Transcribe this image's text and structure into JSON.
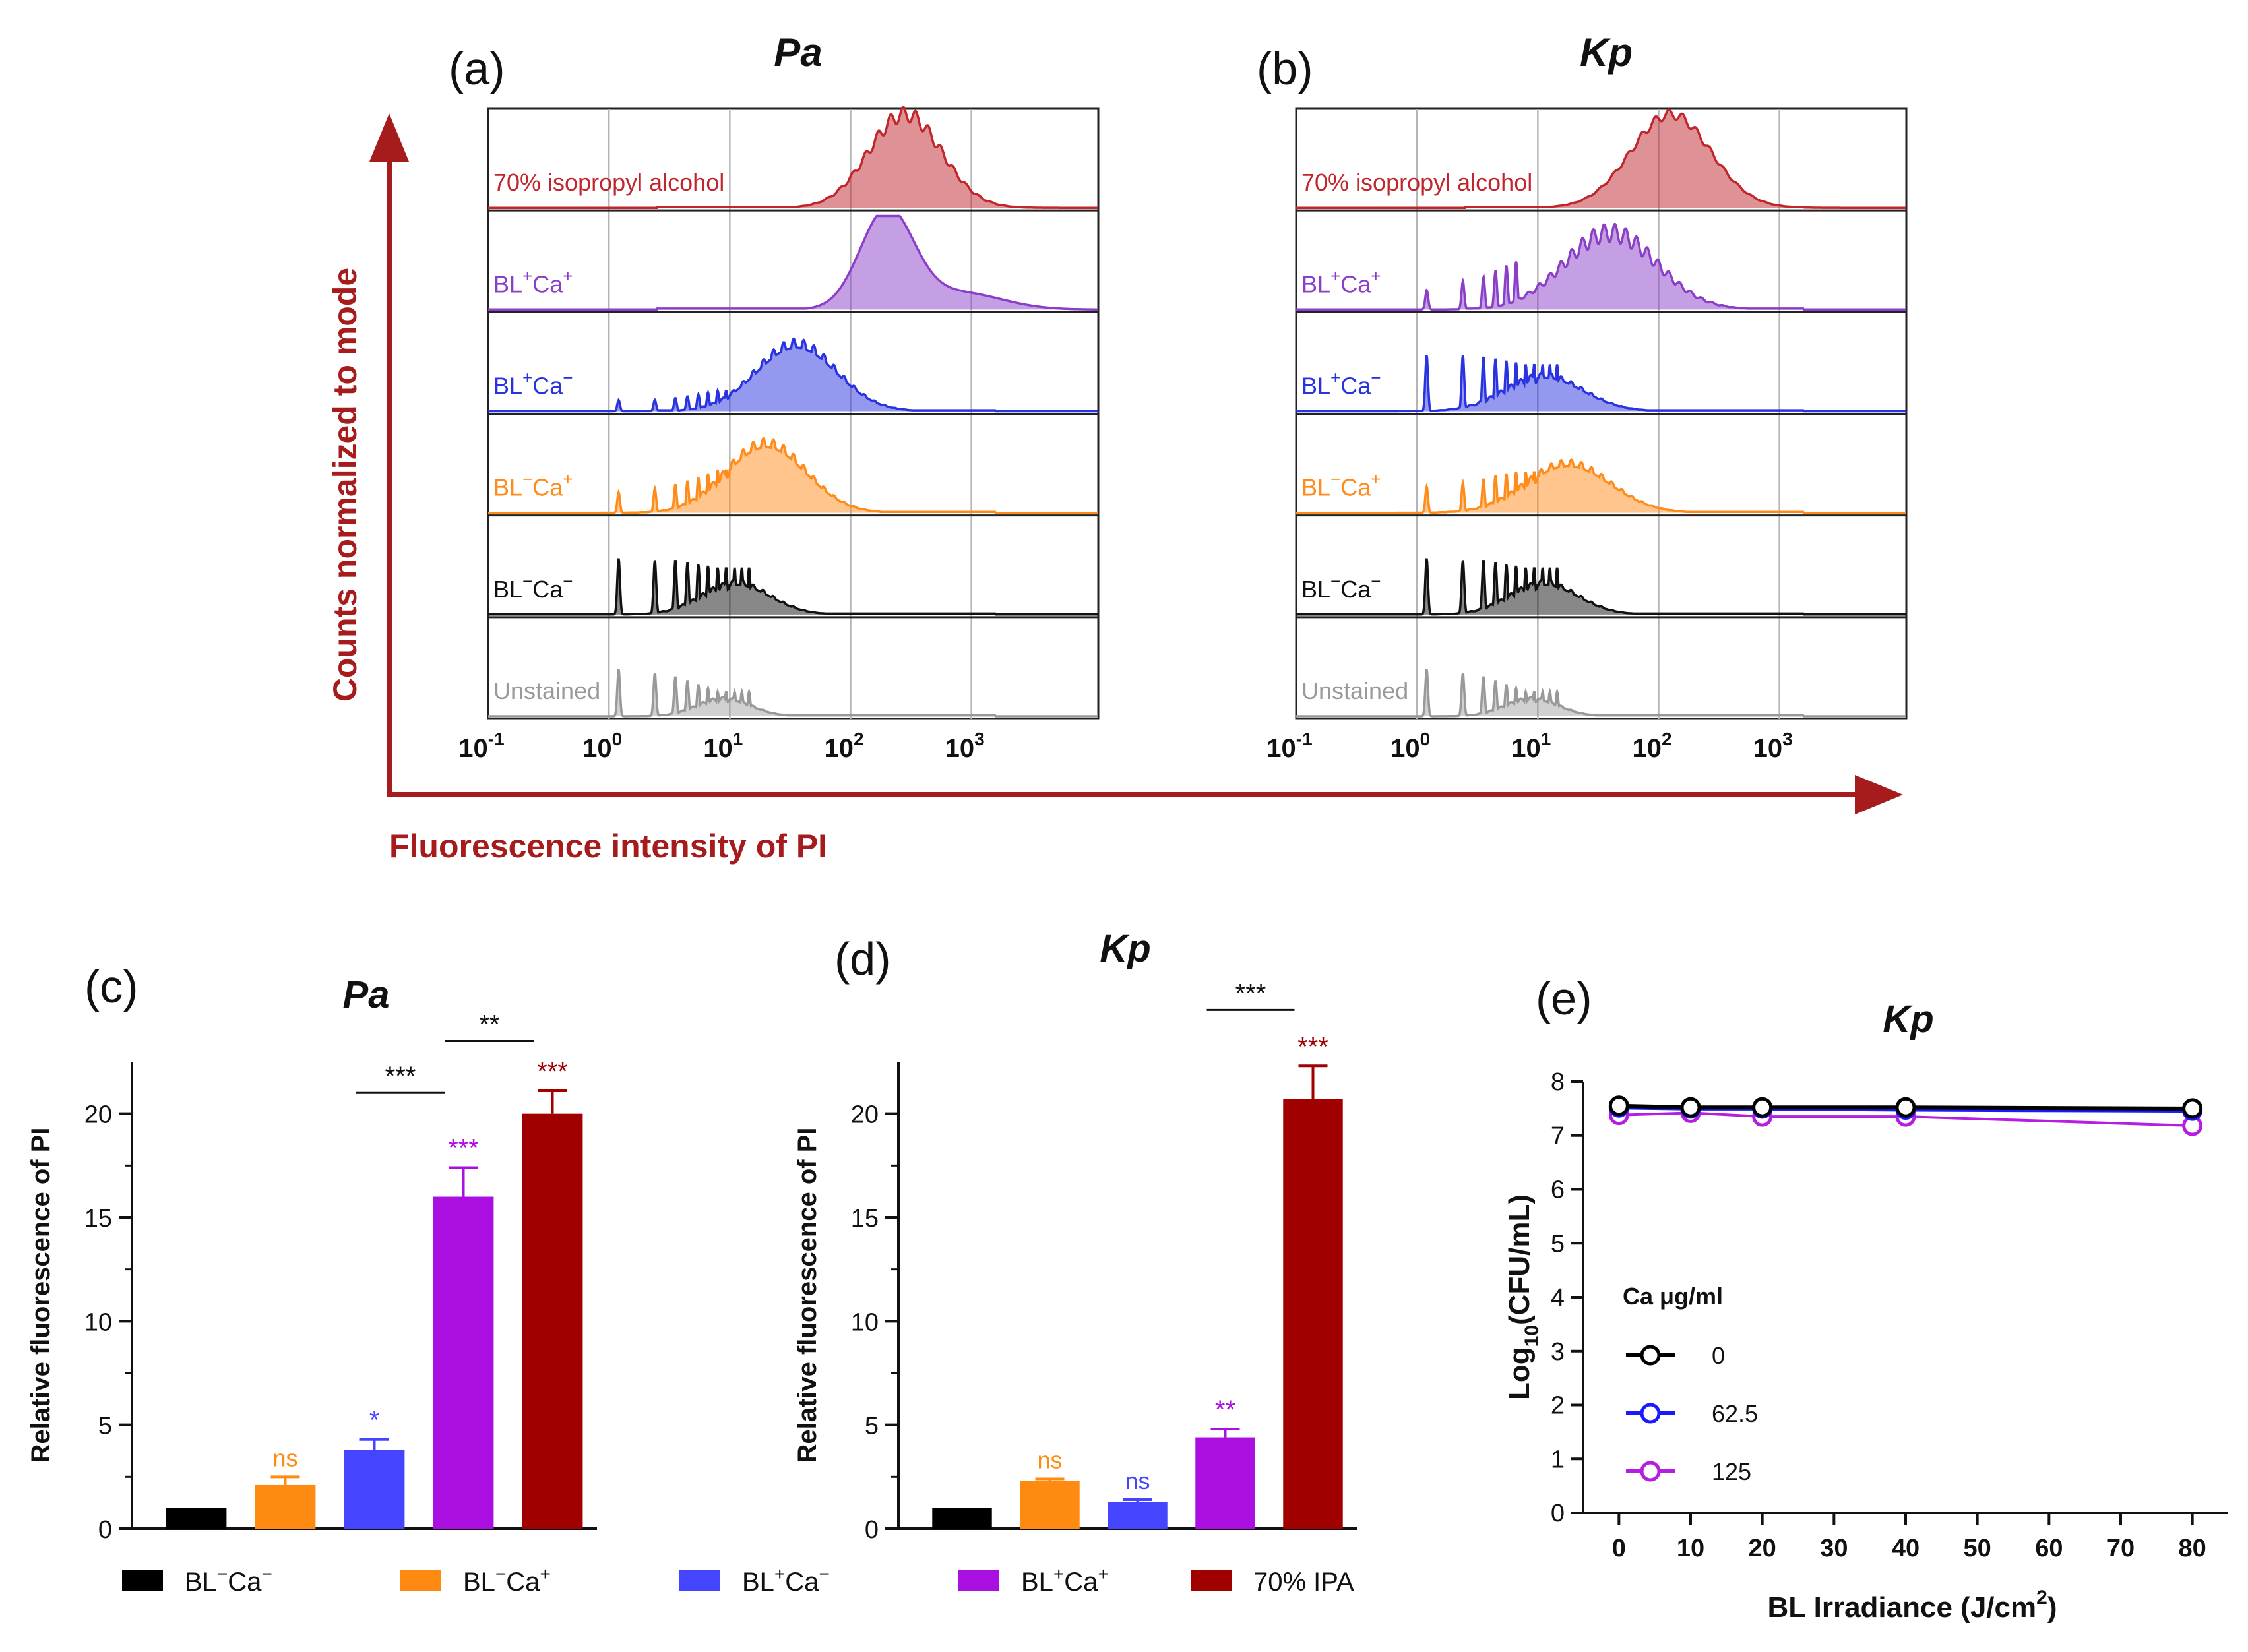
{
  "colors": {
    "arrow": "#a61c1c",
    "series": [
      "#c0262b",
      "#8b3fc9",
      "#2a33e0",
      "#ff8c1a",
      "#111111",
      "#999999"
    ],
    "bars": [
      "#000000",
      "#ff8a12",
      "#4545ff",
      "#a90fe0",
      "#a00000"
    ],
    "lines": [
      "#000000",
      "#1a1aff",
      "#b51ee0"
    ]
  },
  "flow": {
    "ylabel": "Counts normalized to mode",
    "xlabel": "Fluorescence intensity of PI",
    "ticks": [
      {
        "base": "10",
        "exp": "-1"
      },
      {
        "base": "10",
        "exp": "0"
      },
      {
        "base": "10",
        "exp": "1"
      },
      {
        "base": "10",
        "exp": "2"
      },
      {
        "base": "10",
        "exp": "3"
      }
    ],
    "panels": [
      {
        "letter": "(a)",
        "title": "Pa"
      },
      {
        "letter": "(b)",
        "title": "Kp"
      }
    ],
    "rows": [
      {
        "label": "70% isopropyl alcohol"
      },
      {
        "label_bl": "BL",
        "label_bl_sign": "+",
        "label_ca": "Ca",
        "label_ca_sign": "+"
      },
      {
        "label_bl": "BL",
        "label_bl_sign": "+",
        "label_ca": "Ca",
        "label_ca_sign": "−"
      },
      {
        "label_bl": "BL",
        "label_bl_sign": "−",
        "label_ca": "Ca",
        "label_ca_sign": "+"
      },
      {
        "label_bl": "BL",
        "label_bl_sign": "−",
        "label_ca": "Ca",
        "label_ca_sign": "−"
      },
      {
        "label": "Unstained"
      }
    ]
  },
  "chart_data": [
    {
      "type": "bar",
      "letter": "(c)",
      "title": "Pa",
      "ylabel": "Relative fluorescence of PI",
      "ylim": [
        0,
        22.5
      ],
      "yticks": [
        "0",
        "5",
        "10",
        "15",
        "20"
      ],
      "categories": [
        "BL−Ca−",
        "BL−Ca+",
        "BL+Ca−",
        "BL+Ca+",
        "70% IPA"
      ],
      "values": [
        1.0,
        2.1,
        3.8,
        16.0,
        20.0
      ],
      "errors": [
        0,
        0.4,
        0.5,
        1.4,
        1.1
      ],
      "stars": [
        "",
        "ns",
        "*",
        "***",
        "***"
      ],
      "comparisons": [
        {
          "from": 2,
          "to": 3,
          "label": "***",
          "y": 21.0
        },
        {
          "from": 3,
          "to": 4,
          "label": "**",
          "y": 23.5
        }
      ]
    },
    {
      "type": "bar",
      "letter": "(d)",
      "title": "Kp",
      "ylabel": "Relative fluorescence of PI",
      "ylim": [
        0,
        22.5
      ],
      "yticks": [
        "0",
        "5",
        "10",
        "15",
        "20"
      ],
      "categories": [
        "BL−Ca−",
        "BL−Ca+",
        "BL+Ca−",
        "BL+Ca+",
        "70% IPA"
      ],
      "values": [
        1.0,
        2.3,
        1.3,
        4.4,
        20.7
      ],
      "errors": [
        0,
        0.1,
        0.1,
        0.4,
        1.6
      ],
      "stars": [
        "",
        "ns",
        "ns",
        "**",
        "***"
      ],
      "comparisons": [
        {
          "from": 3,
          "to": 4,
          "label": "***",
          "y": 25.0
        }
      ]
    },
    {
      "type": "line",
      "letter": "(e)",
      "title": "Kp",
      "xlabel": "BL Irradiance (J/cm",
      "xlabel_sup": "2",
      "xlabel_end": ")",
      "ylabel": "Log",
      "ylabel_sub": "10",
      "ylabel_end": "(CFU/mL)",
      "xlim": [
        -5,
        85
      ],
      "ylim": [
        0,
        8
      ],
      "xticks": [
        "0",
        "10",
        "20",
        "30",
        "40",
        "50",
        "60",
        "70",
        "80"
      ],
      "yticks": [
        "0",
        "1",
        "2",
        "3",
        "4",
        "5",
        "6",
        "7",
        "8"
      ],
      "x": [
        0,
        10,
        20,
        40,
        80
      ],
      "legend_title": "Ca μg/ml",
      "series": [
        {
          "name": "0",
          "values": [
            7.55,
            7.52,
            7.52,
            7.52,
            7.5
          ]
        },
        {
          "name": "62.5",
          "values": [
            7.52,
            7.5,
            7.5,
            7.48,
            7.46
          ]
        },
        {
          "name": "125",
          "values": [
            7.38,
            7.42,
            7.35,
            7.35,
            7.18
          ]
        }
      ]
    }
  ],
  "legend": {
    "items": [
      {
        "bl": "BL",
        "bl_sign": "−",
        "ca": "Ca",
        "ca_sign": "−"
      },
      {
        "bl": "BL",
        "bl_sign": "−",
        "ca": "Ca",
        "ca_sign": "+"
      },
      {
        "bl": "BL",
        "bl_sign": "+",
        "ca": "Ca",
        "ca_sign": "−"
      },
      {
        "bl": "BL",
        "bl_sign": "+",
        "ca": "Ca",
        "ca_sign": "+"
      },
      {
        "text": "70% IPA"
      }
    ]
  }
}
